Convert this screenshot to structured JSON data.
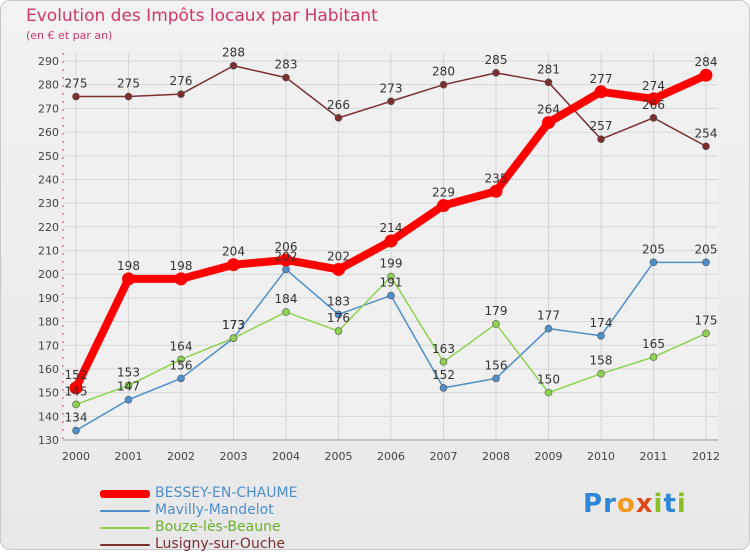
{
  "header": {
    "title": "Evolution des Impôts locaux par Habitant",
    "subtitle": "(en € et par an)"
  },
  "logo": {
    "text": "Proxiti"
  },
  "chart_data": {
    "type": "line",
    "title": "Evolution des Impôts locaux par Habitant",
    "subtitle": "(en € et par an)",
    "x": [
      "2000",
      "2001",
      "2002",
      "2003",
      "2004",
      "2005",
      "2006",
      "2007",
      "2008",
      "2009",
      "2010",
      "2011",
      "2012"
    ],
    "ylim": [
      130,
      290
    ],
    "yticks": [
      130,
      140,
      150,
      160,
      170,
      180,
      190,
      200,
      210,
      220,
      230,
      240,
      250,
      260,
      270,
      280,
      290
    ],
    "grid": true,
    "legend_position": "bottom-left",
    "series": [
      {
        "name": "BESSEY-EN-CHAUME",
        "color": "#ff0000",
        "values": [
          152,
          198,
          198,
          204,
          206,
          202,
          214,
          229,
          235,
          264,
          277,
          274,
          284
        ],
        "labels": [
          "152",
          "198",
          "198",
          "204",
          "206",
          "202",
          "214",
          "229",
          "235",
          "264",
          "277",
          "274",
          "284"
        ]
      },
      {
        "name": "Mavilly-Mandelot",
        "color": "#4f8ec9",
        "values": [
          134,
          147,
          156,
          173,
          202,
          183,
          191,
          152,
          156,
          177,
          174,
          205,
          205
        ],
        "labels": [
          "134",
          "147",
          "156",
          "173",
          "202",
          "183",
          "191",
          "152",
          "156",
          "177",
          "174",
          "205",
          "205"
        ]
      },
      {
        "name": "Bouze-lès-Beaune",
        "color": "#8fd14f",
        "values": [
          145,
          153,
          164,
          173,
          184,
          176,
          199,
          163,
          179,
          150,
          158,
          165,
          175
        ],
        "labels": [
          "145",
          "153",
          "164",
          "173",
          "184",
          "176",
          "199",
          "163",
          "179",
          "150",
          "158",
          "165",
          "175"
        ]
      },
      {
        "name": "Lusigny-sur-Ouche",
        "color": "#7b2f2f",
        "values": [
          275,
          275,
          276,
          288,
          283,
          266,
          273,
          280,
          285,
          281,
          257,
          266,
          254
        ],
        "labels": [
          "275",
          "275",
          "276",
          "288",
          "283",
          "266",
          "273",
          "280",
          "285",
          "281",
          "257",
          "266",
          "254"
        ]
      }
    ]
  }
}
